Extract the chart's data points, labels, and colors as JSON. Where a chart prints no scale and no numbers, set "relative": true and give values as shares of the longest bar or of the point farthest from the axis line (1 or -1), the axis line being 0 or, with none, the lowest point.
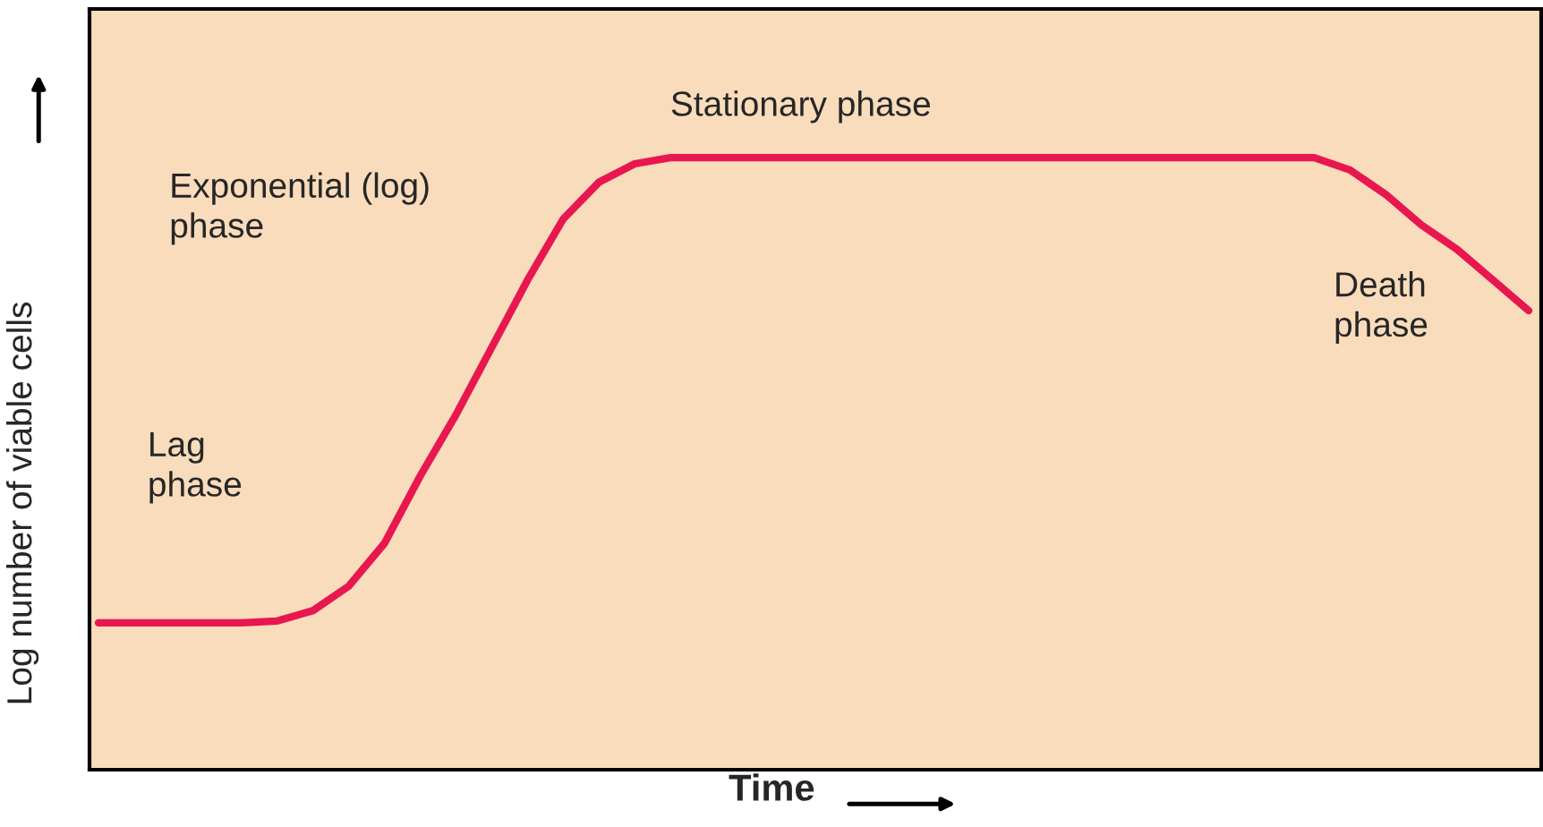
{
  "chart_data": {
    "type": "line",
    "relative": true,
    "xlabel": "Time",
    "ylabel": "Log number of viable cells",
    "categories": [
      null,
      null,
      null,
      null,
      null,
      null,
      null,
      null,
      null,
      null,
      null,
      null,
      null,
      null,
      null,
      null,
      null,
      null,
      null,
      null,
      null,
      null,
      null,
      null,
      null,
      null,
      null,
      null,
      null,
      null,
      null,
      null,
      null,
      null,
      null,
      null,
      null,
      null,
      null,
      null,
      null
    ],
    "series": [
      {
        "color": "#e8174f",
        "values": [
          0.24,
          0.24,
          0.24,
          0.24,
          0.24,
          0.243,
          0.26,
          0.3,
          0.37,
          0.48,
          0.58,
          0.69,
          0.8,
          0.9,
          0.96,
          0.99,
          1,
          1,
          1,
          1,
          1,
          1,
          1,
          1,
          1,
          1,
          1,
          1,
          1,
          1,
          1,
          1,
          1,
          1,
          1,
          0.98,
          0.94,
          0.89,
          0.85,
          0.8,
          0.75
        ]
      }
    ],
    "annotations": [
      "Lag\nphase",
      "Exponential (log)\nphase",
      "Stationary phase",
      "Death\nphase"
    ],
    "legend": false
  }
}
